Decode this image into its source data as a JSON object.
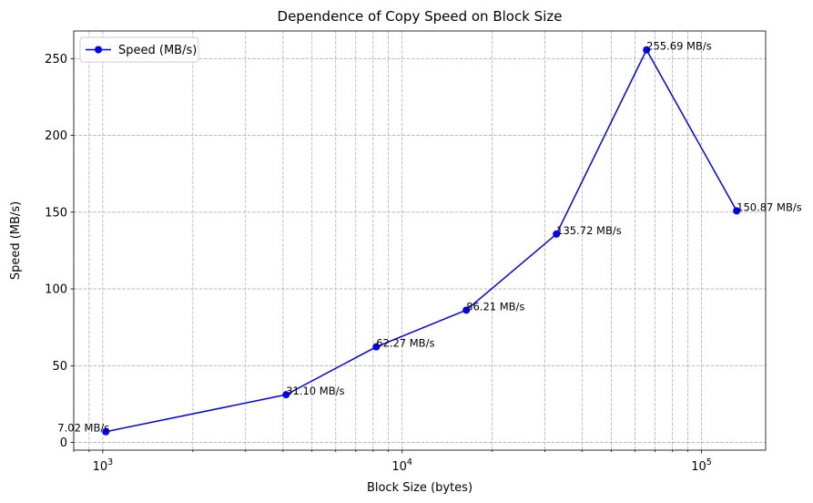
{
  "chart_data": {
    "type": "line",
    "title": "Dependence of Copy Speed on Block Size",
    "xlabel": "Block Size (bytes)",
    "ylabel": "Speed (MB/s)",
    "xscale": "log",
    "xlim": [
      800,
      163840
    ],
    "ylim": [
      -5,
      268
    ],
    "yticks": [
      0,
      50,
      100,
      150,
      200,
      250
    ],
    "xticks_major": [
      {
        "value": 1000,
        "base": "10",
        "exp": "3"
      },
      {
        "value": 10000,
        "base": "10",
        "exp": "4"
      },
      {
        "value": 100000,
        "base": "10",
        "exp": "5"
      }
    ],
    "grid": true,
    "legend_position": "top-left",
    "series": [
      {
        "name": "Speed (MB/s)",
        "color": "#0000ff",
        "marker": "circle",
        "x": [
          1024,
          4096,
          8192,
          16384,
          32768,
          65536,
          131072
        ],
        "y": [
          7.02,
          31.1,
          62.27,
          86.21,
          135.72,
          255.69,
          150.87
        ],
        "labels": [
          "7.02 MB/s",
          "31.10 MB/s",
          "62.27 MB/s",
          "86.21 MB/s",
          "135.72 MB/s",
          "255.69 MB/s",
          "150.87 MB/s"
        ]
      }
    ]
  }
}
